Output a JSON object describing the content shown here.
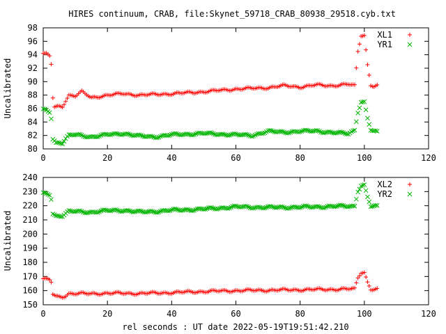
{
  "title": "HIRES continuum, CRAB, file:Skynet_59718_CRAB_80938_29518.cyb.txt",
  "xlabel": "rel seconds : UT date 2022-05-19T19:51:42.210",
  "colors": {
    "red": "#ff0000",
    "green": "#00b400"
  },
  "chart_data": [
    {
      "type": "scatter",
      "ylabel": "Uncalibrated",
      "xlim": [
        0,
        120
      ],
      "ylim": [
        80,
        98
      ],
      "xticks": [
        "0",
        "20",
        "40",
        "60",
        "80",
        "100",
        "120"
      ],
      "yticks": [
        "80",
        "82",
        "84",
        "86",
        "88",
        "90",
        "92",
        "94",
        "96",
        "98"
      ],
      "legend": "top-right",
      "series": [
        {
          "name": "XL1",
          "marker": "plus",
          "color": "#ff0000",
          "profile": [
            [
              0,
              94.2
            ],
            [
              1,
              94.1
            ],
            [
              2,
              93.8
            ],
            [
              2.5,
              92.6
            ],
            [
              3,
              87.6
            ],
            [
              3.5,
              86.2
            ],
            [
              5,
              86.3
            ],
            [
              6,
              86.3
            ],
            [
              7,
              87.2
            ],
            [
              8,
              88.0
            ],
            [
              10,
              87.9
            ],
            [
              12,
              88.5
            ],
            [
              15,
              87.6
            ],
            [
              20,
              88.0
            ],
            [
              25,
              88.2
            ],
            [
              30,
              88.0
            ],
            [
              35,
              88.1
            ],
            [
              40,
              88.2
            ],
            [
              50,
              88.5
            ],
            [
              60,
              88.9
            ],
            [
              70,
              89.1
            ],
            [
              75,
              89.4
            ],
            [
              80,
              89.2
            ],
            [
              85,
              89.5
            ],
            [
              90,
              89.4
            ],
            [
              95,
              89.6
            ],
            [
              97,
              89.4
            ],
            [
              98,
              94.5
            ],
            [
              99,
              96.9
            ],
            [
              100,
              96.9
            ],
            [
              101,
              92.5
            ],
            [
              102,
              89.5
            ],
            [
              103,
              89.3
            ],
            [
              104,
              89.4
            ]
          ]
        },
        {
          "name": "YR1",
          "marker": "cross",
          "color": "#00b400",
          "profile": [
            [
              0,
              85.8
            ],
            [
              1,
              85.7
            ],
            [
              2,
              85.5
            ],
            [
              2.5,
              84.6
            ],
            [
              3,
              81.5
            ],
            [
              4,
              80.9
            ],
            [
              5,
              81.0
            ],
            [
              6,
              80.9
            ],
            [
              7,
              81.5
            ],
            [
              8,
              82.0
            ],
            [
              10,
              82.1
            ],
            [
              15,
              81.8
            ],
            [
              20,
              82.1
            ],
            [
              25,
              82.3
            ],
            [
              30,
              81.9
            ],
            [
              35,
              81.8
            ],
            [
              40,
              82.1
            ],
            [
              50,
              82.3
            ],
            [
              60,
              82.1
            ],
            [
              65,
              82.0
            ],
            [
              70,
              82.6
            ],
            [
              75,
              82.5
            ],
            [
              80,
              82.6
            ],
            [
              85,
              82.7
            ],
            [
              90,
              82.4
            ],
            [
              95,
              82.3
            ],
            [
              97,
              82.8
            ],
            [
              98,
              85.5
            ],
            [
              99,
              87.0
            ],
            [
              100,
              86.9
            ],
            [
              101,
              84.5
            ],
            [
              102,
              82.8
            ],
            [
              103,
              82.6
            ],
            [
              104,
              82.5
            ]
          ]
        }
      ]
    },
    {
      "type": "scatter",
      "ylabel": "Uncalibrated",
      "xlim": [
        0,
        120
      ],
      "ylim": [
        150,
        240
      ],
      "xticks": [
        "0",
        "20",
        "40",
        "60",
        "80",
        "100",
        "120"
      ],
      "yticks": [
        "150",
        "160",
        "170",
        "180",
        "190",
        "200",
        "210",
        "220",
        "230",
        "240"
      ],
      "legend": "top-right",
      "series": [
        {
          "name": "XL2",
          "marker": "plus",
          "color": "#ff0000",
          "profile": [
            [
              0,
              168.5
            ],
            [
              1,
              168.0
            ],
            [
              2,
              167.5
            ],
            [
              2.5,
              166.0
            ],
            [
              3,
              157.5
            ],
            [
              4,
              155.8
            ],
            [
              5,
              155.5
            ],
            [
              6,
              155.6
            ],
            [
              7,
              156.5
            ],
            [
              8,
              158.0
            ],
            [
              15,
              157.8
            ],
            [
              20,
              158.2
            ],
            [
              30,
              158.0
            ],
            [
              40,
              158.6
            ],
            [
              50,
              159.4
            ],
            [
              60,
              160.0
            ],
            [
              70,
              160.3
            ],
            [
              80,
              160.6
            ],
            [
              90,
              160.9
            ],
            [
              97,
              161.2
            ],
            [
              98,
              169.0
            ],
            [
              99,
              173.0
            ],
            [
              100,
              173.0
            ],
            [
              101,
              166.0
            ],
            [
              102,
              161.0
            ],
            [
              103,
              161.0
            ],
            [
              104,
              161.0
            ]
          ]
        },
        {
          "name": "YR2",
          "marker": "cross",
          "color": "#00b400",
          "profile": [
            [
              0,
              228.5
            ],
            [
              1,
              228.2
            ],
            [
              2,
              228.0
            ],
            [
              2.5,
              225.0
            ],
            [
              3,
              214.5
            ],
            [
              4,
              212.8
            ],
            [
              5,
              213.0
            ],
            [
              6,
              213.0
            ],
            [
              7,
              214.5
            ],
            [
              8,
              216.0
            ],
            [
              15,
              215.5
            ],
            [
              20,
              216.5
            ],
            [
              25,
              216.8
            ],
            [
              30,
              215.5
            ],
            [
              35,
              216.0
            ],
            [
              40,
              216.8
            ],
            [
              50,
              217.6
            ],
            [
              60,
              219.2
            ],
            [
              70,
              218.8
            ],
            [
              80,
              219.0
            ],
            [
              90,
              219.5
            ],
            [
              97,
              219.8
            ],
            [
              98,
              230.5
            ],
            [
              99,
              234.3
            ],
            [
              100,
              234.3
            ],
            [
              101,
              226.0
            ],
            [
              102,
              219.5
            ],
            [
              103,
              219.5
            ],
            [
              104,
              219.5
            ]
          ]
        }
      ]
    }
  ]
}
